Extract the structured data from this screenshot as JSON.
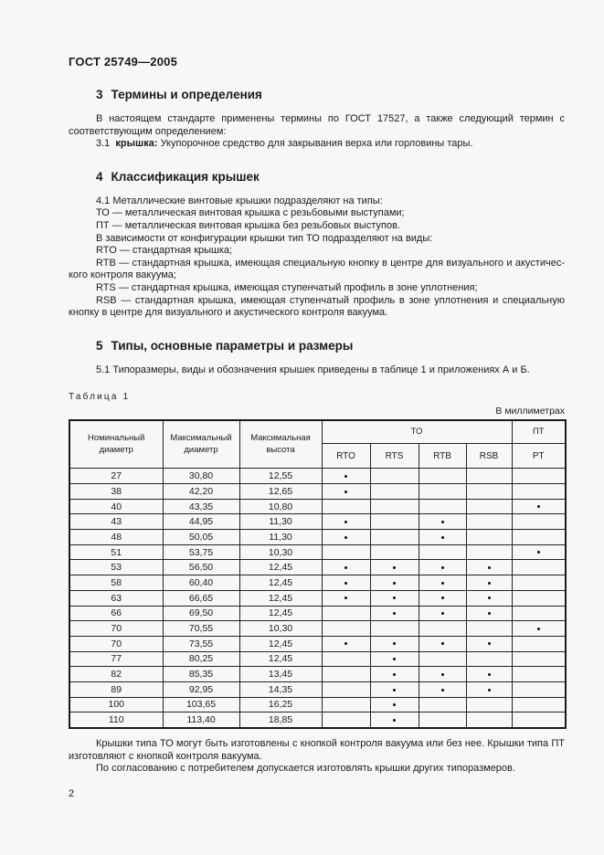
{
  "doc": {
    "header": "ГОСТ 25749—2005",
    "page_number": "2"
  },
  "section3": {
    "number": "3",
    "title": "Термины и определения",
    "intro": "В настоящем стандарте применены термины по ГОСТ 17527, а также следующий термин с соответ­ствующим определением:",
    "term_number": "3.1",
    "term": "крышка:",
    "definition": "Укупорочное средство для закрывания верха или горловины тары."
  },
  "section4": {
    "number": "4",
    "title": "Классификация крышек",
    "lines": [
      "4.1  Металлические винтовые крышки подразделяют на типы:",
      "ТО — металлическая винтовая крышка с резьбовыми выступами;",
      "ПТ — металлическая винтовая крышка без резьбовых выступов.",
      "В зависимости от конфигурации крышки тип ТО подразделяют на виды:",
      "RTO — стандартная крышка;",
      "RTB — стандартная крышка, имеющая специальную кнопку в центре для визуального и акустичес­кого контроля вакуума;",
      "RTS — стандартная крышка, имеющая ступенчатый профиль в зоне уплотнения;",
      "RSB — стандартная крышка, имеющая ступенчатый профиль в зоне уплотнения и специальную кнопку в центре для визуального и акустического контроля вакуума."
    ]
  },
  "section5": {
    "number": "5",
    "title": "Типы, основные параметры и размеры",
    "intro": "5.1  Типоразмеры, виды и обозначения крышек приведены в таблице 1 и приложениях А и Б."
  },
  "table": {
    "caption": "Таблица 1",
    "units_note": "В миллиметрах",
    "headers": {
      "nominal_diameter": "Номинальный диаметр",
      "max_diameter": "Максимальный диаметр",
      "max_height": "Максимальная высота",
      "group_to": "ТО",
      "group_pt": "ПТ",
      "sub_rto": "RTO",
      "sub_rts": "RTS",
      "sub_rtb": "RTB",
      "sub_rsb": "RSB",
      "sub_pt": "PT"
    },
    "rows": [
      {
        "nominal": "27",
        "max_d": "30,80",
        "max_h": "12,55",
        "marks": [
          1,
          0,
          0,
          0,
          0
        ]
      },
      {
        "nominal": "38",
        "max_d": "42,20",
        "max_h": "12,65",
        "marks": [
          1,
          0,
          0,
          0,
          0
        ]
      },
      {
        "nominal": "40",
        "max_d": "43,35",
        "max_h": "10,80",
        "marks": [
          0,
          0,
          0,
          0,
          1
        ]
      },
      {
        "nominal": "43",
        "max_d": "44,95",
        "max_h": "11,30",
        "marks": [
          1,
          0,
          1,
          0,
          0
        ]
      },
      {
        "nominal": "48",
        "max_d": "50,05",
        "max_h": "11,30",
        "marks": [
          1,
          0,
          1,
          0,
          0
        ]
      },
      {
        "nominal": "51",
        "max_d": "53,75",
        "max_h": "10,30",
        "marks": [
          0,
          0,
          0,
          0,
          1
        ]
      },
      {
        "nominal": "53",
        "max_d": "56,50",
        "max_h": "12,45",
        "marks": [
          1,
          1,
          1,
          1,
          0
        ]
      },
      {
        "nominal": "58",
        "max_d": "60,40",
        "max_h": "12,45",
        "marks": [
          1,
          1,
          1,
          1,
          0
        ]
      },
      {
        "nominal": "63",
        "max_d": "66,65",
        "max_h": "12,45",
        "marks": [
          1,
          1,
          1,
          1,
          0
        ]
      },
      {
        "nominal": "66",
        "max_d": "69,50",
        "max_h": "12,45",
        "marks": [
          0,
          1,
          1,
          1,
          0
        ]
      },
      {
        "nominal": "70",
        "max_d": "70,55",
        "max_h": "10,30",
        "marks": [
          0,
          0,
          0,
          0,
          1
        ]
      },
      {
        "nominal": "70",
        "max_d": "73,55",
        "max_h": "12,45",
        "marks": [
          1,
          1,
          1,
          1,
          0
        ]
      },
      {
        "nominal": "77",
        "max_d": "80,25",
        "max_h": "12,45",
        "marks": [
          0,
          1,
          0,
          0,
          0
        ]
      },
      {
        "nominal": "82",
        "max_d": "85,35",
        "max_h": "13,45",
        "marks": [
          0,
          1,
          1,
          1,
          0
        ]
      },
      {
        "nominal": "89",
        "max_d": "92,95",
        "max_h": "14,35",
        "marks": [
          0,
          1,
          1,
          1,
          0
        ]
      },
      {
        "nominal": "100",
        "max_d": "103,65",
        "max_h": "16,25",
        "marks": [
          0,
          1,
          0,
          0,
          0
        ]
      },
      {
        "nominal": "110",
        "max_d": "113,40",
        "max_h": "18,85",
        "marks": [
          0,
          1,
          0,
          0,
          0
        ]
      }
    ]
  },
  "notes": {
    "note1": "Крышки типа ТО могут быть изготовлены с кнопкой контроля вакуума или без нее. Крышки типа ПТ изготовляют с кнопкой контроля вакуума.",
    "note2": "По согласованию с потребителем допускается изготовлять крышки других типоразмеров."
  }
}
